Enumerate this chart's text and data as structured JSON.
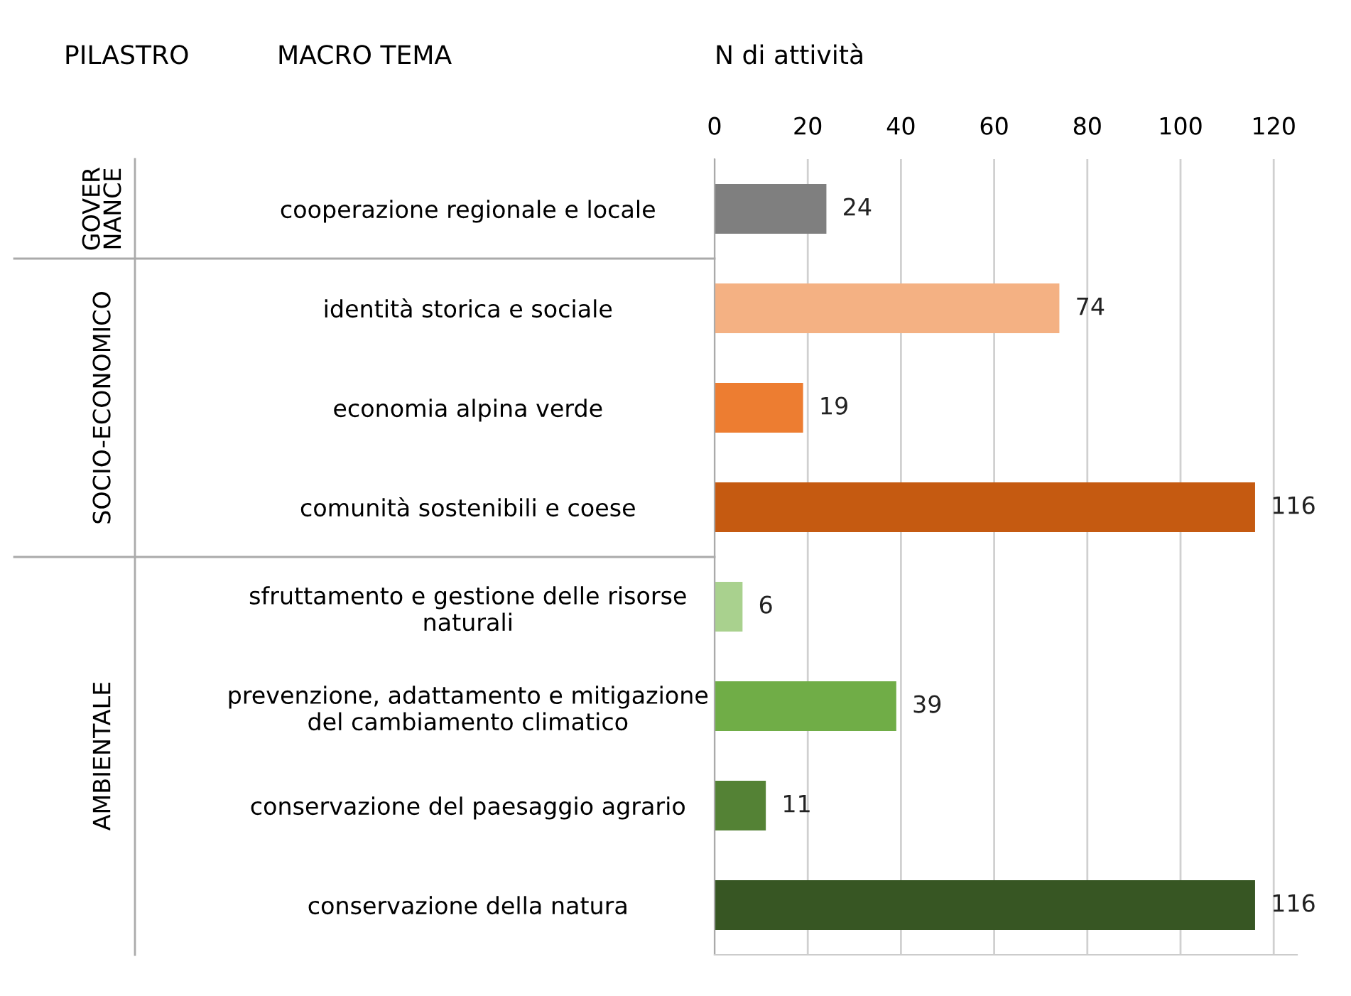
{
  "chart_data": {
    "type": "bar",
    "orientation": "horizontal",
    "xlabel": "N di attività",
    "ylabel": "MACRO TEMA",
    "categories": [
      "cooperazione regionale e locale",
      "identità storica e sociale",
      "economia alpina verde",
      "comunità sostenibili e coese",
      "sfruttamento e gestione delle risorse\nnaturali",
      "prevenzione, adattamento e mitigazione\ndel cambiamento climatico",
      "conservazione del paesaggio agrario",
      "conservazione della natura"
    ],
    "values": [
      24,
      74,
      19,
      116,
      6,
      39,
      11,
      116
    ],
    "colors": [
      "#7f7f7f",
      "#f4b183",
      "#ed7d31",
      "#c55a11",
      "#a9d18e",
      "#70ad47",
      "#548235",
      "#375623"
    ],
    "xlim": [
      0,
      125
    ],
    "xticks": [
      0,
      20,
      40,
      60,
      80,
      100,
      120
    ],
    "grid": "x",
    "data_labels": true,
    "annotations": [
      "PILASTRO",
      "GOVER\nNANCE",
      "SOCIO-ECONOMICO",
      "AMBIENTALE"
    ]
  }
}
